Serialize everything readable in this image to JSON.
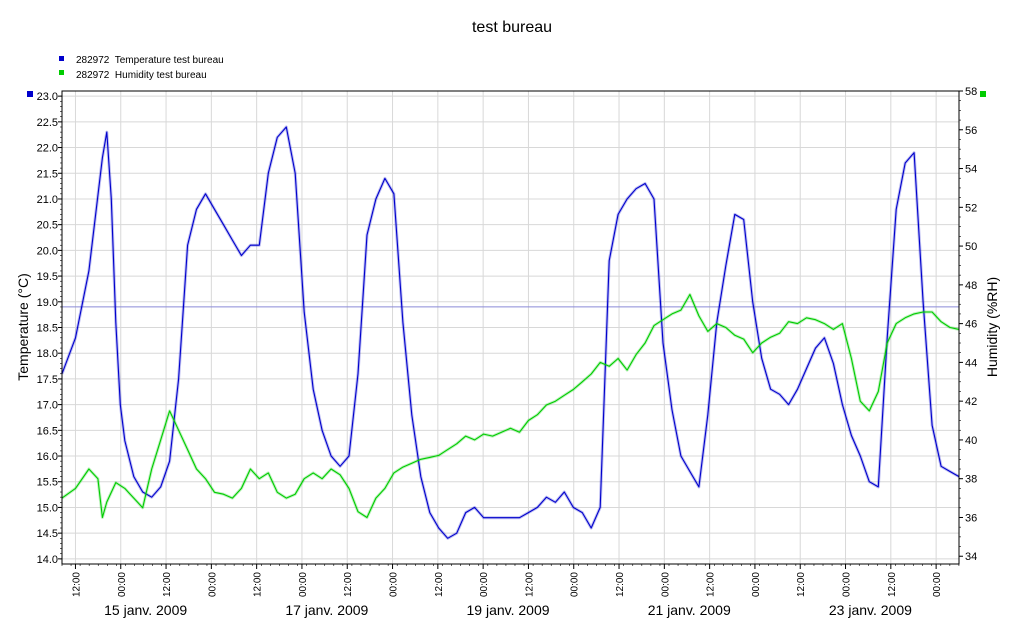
{
  "chart_data": {
    "type": "line",
    "title": "test bureau",
    "ylabel": "Temperature (°C)",
    "y2label": "Humidity (%RH)",
    "ylim": [
      13.9,
      23.1
    ],
    "y2lim": [
      33.6,
      58.0
    ],
    "xlim_hours": [
      0,
      200
    ],
    "y_ticks": [
      "14.0",
      "14.5",
      "15.0",
      "15.5",
      "16.0",
      "16.5",
      "17.0",
      "17.5",
      "18.0",
      "18.5",
      "19.0",
      "19.5",
      "20.0",
      "20.5",
      "21.0",
      "21.5",
      "22.0",
      "22.5",
      "23.0"
    ],
    "y2_ticks": [
      "34",
      "36",
      "38",
      "40",
      "42",
      "44",
      "46",
      "48",
      "50",
      "52",
      "54",
      "56",
      "58"
    ],
    "time_ticks": [
      "12:00",
      "00:00",
      "12:00",
      "00:00",
      "12:00",
      "00:00",
      "12:00",
      "00:00",
      "12:00",
      "00:00",
      "12:00",
      "00:00",
      "12:00",
      "00:00",
      "12:00",
      "00:00",
      "12:00",
      "00:00",
      "12:00",
      "00:00"
    ],
    "date_labels": [
      "15 janv. 2009",
      "17 janv. 2009",
      "19 janv. 2009",
      "21 janv. 2009",
      "23 janv. 2009"
    ],
    "reference_line_y": 18.9,
    "grid": true,
    "legend_position": "top-left",
    "series": [
      {
        "name": "282972  Temperature test bureau",
        "color": "#0000cc",
        "axis": "left",
        "x": [
          0,
          3,
          6,
          9,
          10,
          11,
          12,
          13,
          14,
          16,
          18,
          20,
          22,
          24,
          26,
          28,
          30,
          32,
          34,
          36,
          38,
          40,
          42,
          44,
          46,
          48,
          50,
          52,
          54,
          56,
          58,
          60,
          62,
          64,
          66,
          68,
          70,
          72,
          74,
          76,
          78,
          80,
          82,
          84,
          86,
          88,
          90,
          92,
          94,
          96,
          98,
          100,
          102,
          104,
          106,
          108,
          110,
          112,
          114,
          116,
          118,
          120,
          122,
          124,
          126,
          128,
          130,
          132,
          134,
          136,
          138,
          140,
          142,
          144,
          146,
          148,
          150,
          152,
          154,
          156,
          158,
          160,
          162,
          164,
          166,
          168,
          170,
          172,
          174,
          176,
          178,
          180,
          182,
          184,
          186,
          188,
          190,
          192,
          194,
          196,
          198,
          200
        ],
        "values": [
          17.6,
          18.3,
          19.6,
          21.8,
          22.3,
          21.0,
          18.6,
          17.0,
          16.3,
          15.6,
          15.3,
          15.2,
          15.4,
          15.9,
          17.5,
          20.1,
          20.8,
          21.1,
          20.8,
          20.5,
          20.2,
          19.9,
          20.1,
          20.1,
          21.5,
          22.2,
          22.4,
          21.5,
          18.8,
          17.3,
          16.5,
          16.0,
          15.8,
          16.0,
          17.6,
          20.3,
          21.0,
          21.4,
          21.1,
          18.6,
          16.8,
          15.6,
          14.9,
          14.6,
          14.4,
          14.5,
          14.9,
          15.0,
          14.8,
          14.8,
          14.8,
          14.8,
          14.8,
          14.9,
          15.0,
          15.2,
          15.1,
          15.3,
          15.0,
          14.9,
          14.6,
          15.0,
          19.8,
          20.7,
          21.0,
          21.2,
          21.3,
          21.0,
          18.2,
          16.9,
          16.0,
          15.7,
          15.4,
          16.8,
          18.6,
          19.7,
          20.7,
          20.6,
          19.0,
          17.9,
          17.3,
          17.2,
          17.0,
          17.3,
          17.7,
          18.1,
          18.3,
          17.8,
          17.0,
          16.4,
          16.0,
          15.5,
          15.4,
          18.3,
          20.8,
          21.7,
          21.9,
          19.0,
          16.6,
          15.8,
          15.7,
          15.6
        ]
      },
      {
        "name": "282972  Humidity test bureau",
        "color": "#00cc00",
        "axis": "right",
        "x": [
          0,
          3,
          6,
          8,
          9,
          10,
          12,
          14,
          16,
          18,
          20,
          22,
          24,
          26,
          28,
          30,
          32,
          34,
          36,
          38,
          40,
          42,
          44,
          46,
          48,
          50,
          52,
          54,
          56,
          58,
          60,
          62,
          64,
          66,
          68,
          70,
          72,
          74,
          76,
          78,
          80,
          82,
          84,
          86,
          88,
          90,
          92,
          94,
          96,
          98,
          100,
          102,
          104,
          106,
          108,
          110,
          112,
          114,
          116,
          118,
          120,
          122,
          124,
          126,
          128,
          130,
          132,
          134,
          136,
          138,
          140,
          142,
          144,
          146,
          148,
          150,
          152,
          154,
          156,
          158,
          160,
          162,
          164,
          166,
          168,
          170,
          172,
          174,
          176,
          178,
          180,
          182,
          184,
          186,
          188,
          190,
          192,
          194,
          196,
          198,
          200
        ],
        "values": [
          37.0,
          37.5,
          38.5,
          38.0,
          36.0,
          36.8,
          37.8,
          37.5,
          37.0,
          36.5,
          38.5,
          40.0,
          41.5,
          40.5,
          39.5,
          38.5,
          38.0,
          37.3,
          37.2,
          37.0,
          37.5,
          38.5,
          38.0,
          38.3,
          37.3,
          37.0,
          37.2,
          38.0,
          38.3,
          38.0,
          38.5,
          38.2,
          37.5,
          36.3,
          36.0,
          37.0,
          37.5,
          38.3,
          38.6,
          38.8,
          39.0,
          39.1,
          39.2,
          39.5,
          39.8,
          40.2,
          40.0,
          40.3,
          40.2,
          40.4,
          40.6,
          40.4,
          41.0,
          41.3,
          41.8,
          42.0,
          42.3,
          42.6,
          43.0,
          43.4,
          44.0,
          43.8,
          44.2,
          43.6,
          44.4,
          45.0,
          45.9,
          46.2,
          46.5,
          46.7,
          47.5,
          46.4,
          45.6,
          46.0,
          45.8,
          45.4,
          45.2,
          44.5,
          45.0,
          45.3,
          45.5,
          46.1,
          46.0,
          46.3,
          46.2,
          46.0,
          45.7,
          46.0,
          44.2,
          42.0,
          41.5,
          42.5,
          45.0,
          46.0,
          46.3,
          46.5,
          46.6,
          46.6,
          46.1,
          45.8,
          45.7
        ]
      }
    ]
  }
}
